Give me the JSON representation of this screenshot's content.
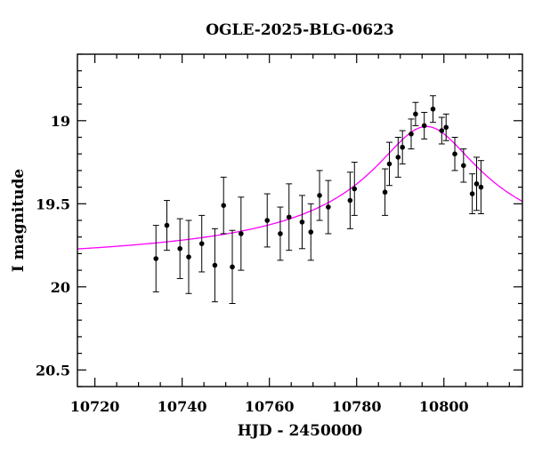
{
  "chart_data": {
    "type": "scatter",
    "title": "OGLE-2025-BLG-0623",
    "xlabel": "HJD - 2450000",
    "ylabel": "I magnitude",
    "xlim": [
      10716,
      10818
    ],
    "ylim": [
      20.6,
      18.6
    ],
    "y_inverted": true,
    "x_ticks": [
      "10720",
      "10740",
      "10760",
      "10780",
      "10800"
    ],
    "y_ticks": [
      "19",
      "19.5",
      "20",
      "20.5"
    ],
    "grid": false,
    "colors": {
      "points": "#000000",
      "model": "#ff00ff",
      "axes": "#000000"
    },
    "series": [
      {
        "type": "errorbar",
        "points": [
          {
            "x": 10734.0,
            "y": 19.83,
            "err": 0.2
          },
          {
            "x": 10736.5,
            "y": 19.63,
            "err": 0.15
          },
          {
            "x": 10739.5,
            "y": 19.77,
            "err": 0.18
          },
          {
            "x": 10741.5,
            "y": 19.82,
            "err": 0.22
          },
          {
            "x": 10744.5,
            "y": 19.74,
            "err": 0.17
          },
          {
            "x": 10747.5,
            "y": 19.87,
            "err": 0.22
          },
          {
            "x": 10749.5,
            "y": 19.51,
            "err": 0.17
          },
          {
            "x": 10751.5,
            "y": 19.88,
            "err": 0.22
          },
          {
            "x": 10753.5,
            "y": 19.68,
            "err": 0.22
          },
          {
            "x": 10759.5,
            "y": 19.6,
            "err": 0.16
          },
          {
            "x": 10762.5,
            "y": 19.68,
            "err": 0.16
          },
          {
            "x": 10764.5,
            "y": 19.58,
            "err": 0.2
          },
          {
            "x": 10767.5,
            "y": 19.61,
            "err": 0.16
          },
          {
            "x": 10769.5,
            "y": 19.67,
            "err": 0.17
          },
          {
            "x": 10771.5,
            "y": 19.45,
            "err": 0.15
          },
          {
            "x": 10773.5,
            "y": 19.52,
            "err": 0.16
          },
          {
            "x": 10778.5,
            "y": 19.48,
            "err": 0.17
          },
          {
            "x": 10779.5,
            "y": 19.41,
            "err": 0.16
          },
          {
            "x": 10786.5,
            "y": 19.43,
            "err": 0.14
          },
          {
            "x": 10787.5,
            "y": 19.26,
            "err": 0.13
          },
          {
            "x": 10789.5,
            "y": 19.22,
            "err": 0.12
          },
          {
            "x": 10790.5,
            "y": 19.16,
            "err": 0.1
          },
          {
            "x": 10792.5,
            "y": 19.08,
            "err": 0.09
          },
          {
            "x": 10793.5,
            "y": 18.96,
            "err": 0.07
          },
          {
            "x": 10795.5,
            "y": 19.03,
            "err": 0.08
          },
          {
            "x": 10797.5,
            "y": 18.93,
            "err": 0.08
          },
          {
            "x": 10799.5,
            "y": 19.06,
            "err": 0.08
          },
          {
            "x": 10800.5,
            "y": 19.04,
            "err": 0.08
          },
          {
            "x": 10802.5,
            "y": 19.2,
            "err": 0.1
          },
          {
            "x": 10804.5,
            "y": 19.27,
            "err": 0.1
          },
          {
            "x": 10806.5,
            "y": 19.44,
            "err": 0.12
          },
          {
            "x": 10807.5,
            "y": 19.38,
            "err": 0.16
          },
          {
            "x": 10808.5,
            "y": 19.4,
            "err": 0.16
          }
        ]
      },
      {
        "type": "line",
        "model": {
          "t0": 10796.0,
          "base": 19.9,
          "amp": 0.865,
          "tE": 12.0
        }
      }
    ]
  }
}
